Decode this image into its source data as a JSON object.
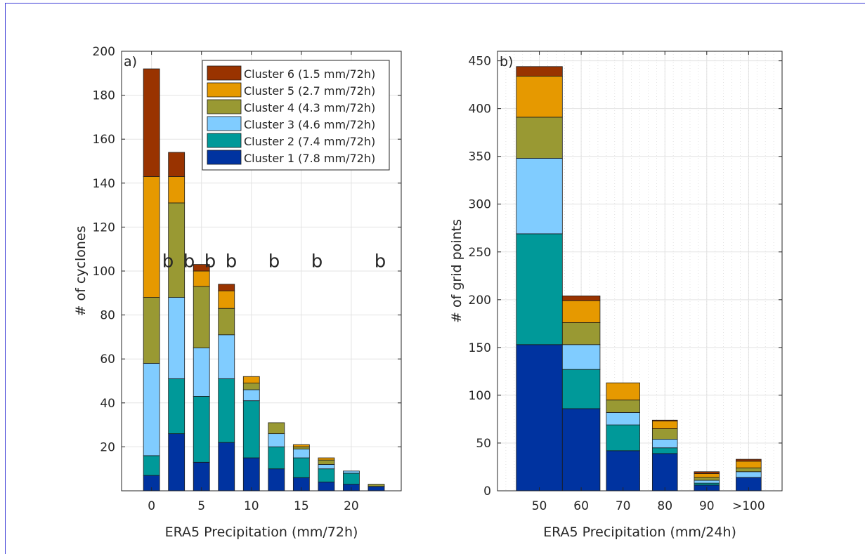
{
  "chart_data": [
    {
      "type": "bar",
      "stacked": true,
      "panel_label": "a)",
      "xlabel": "ERA5 Precipitation (mm/72h)",
      "ylabel": "# of cyclones",
      "xlim": [
        -3,
        25
      ],
      "ylim": [
        0,
        200
      ],
      "xticks": [
        0,
        5,
        10,
        15,
        20
      ],
      "yticks": [
        20,
        40,
        60,
        80,
        100,
        120,
        140,
        160,
        180,
        200
      ],
      "grid": true,
      "legend_position": "top-right",
      "x": [
        0,
        2.5,
        5,
        7.5,
        10,
        12.5,
        15,
        17.5,
        20,
        22.5
      ],
      "series": [
        {
          "name": "Cluster 1 (7.8 mm/72h)",
          "color": "#0033a0",
          "values": [
            7,
            26,
            13,
            22,
            15,
            10,
            6,
            4,
            3,
            2
          ]
        },
        {
          "name": "Cluster 2 (7.4 mm/72h)",
          "color": "#009999",
          "values": [
            9,
            25,
            30,
            29,
            26,
            10,
            9,
            6,
            5,
            0
          ]
        },
        {
          "name": "Cluster 3 (4.6 mm/72h)",
          "color": "#80ccff",
          "values": [
            42,
            37,
            22,
            20,
            5,
            6,
            4,
            2,
            1,
            0
          ]
        },
        {
          "name": "Cluster 4 (4.3 mm/72h)",
          "color": "#999933",
          "values": [
            30,
            43,
            28,
            12,
            3,
            5,
            1,
            2,
            0,
            1
          ]
        },
        {
          "name": "Cluster 5 (2.7 mm/72h)",
          "color": "#e69900",
          "values": [
            55,
            12,
            7,
            8,
            3,
            0,
            1,
            1,
            0,
            0
          ]
        },
        {
          "name": "Cluster 6 (1.5 mm/72h)",
          "color": "#993300",
          "values": [
            49,
            11,
            3,
            3,
            0,
            0,
            0,
            0,
            0,
            0
          ]
        }
      ],
      "annotations": [
        {
          "text": "b",
          "x": 2.5,
          "y": 105,
          "color": "#0033a0"
        },
        {
          "text": "b",
          "x": 5,
          "y": 105,
          "color": "#0033a0"
        },
        {
          "text": "b",
          "x": 7.5,
          "y": 105,
          "color": "#e69900"
        },
        {
          "text": "b",
          "x": 10,
          "y": 105,
          "color": "#009999"
        },
        {
          "text": "b",
          "x": 15,
          "y": 105,
          "color": "#0033a0"
        },
        {
          "text": "b",
          "x": 20,
          "y": 105,
          "color": "#009999"
        },
        {
          "text": "b",
          "x": 27.5,
          "y": 105,
          "color": "#009999"
        }
      ]
    },
    {
      "type": "bar",
      "stacked": true,
      "panel_label": "b)",
      "xlabel": "ERA5 Precipitation (mm/24h)",
      "ylabel": "# of grid points",
      "xlim": [
        40,
        108
      ],
      "ylim": [
        0,
        460
      ],
      "xticks": [
        50,
        60,
        70,
        80,
        90,
        100
      ],
      "xtick_labels": [
        "50",
        "60",
        "70",
        "80",
        "90",
        ">100"
      ],
      "yticks": [
        0,
        50,
        100,
        150,
        200,
        250,
        300,
        350,
        400,
        450
      ],
      "grid": true,
      "x": [
        50,
        60,
        70,
        80,
        90,
        100
      ],
      "widths": [
        11,
        9,
        8,
        6,
        6,
        6
      ],
      "series": [
        {
          "name": "Cluster 1 (7.8 mm/72h)",
          "color": "#0033a0",
          "values": [
            153,
            86,
            42,
            39,
            6,
            14
          ]
        },
        {
          "name": "Cluster 2 (7.4 mm/72h)",
          "color": "#009999",
          "values": [
            116,
            41,
            27,
            6,
            2,
            0
          ]
        },
        {
          "name": "Cluster 3 (4.6 mm/72h)",
          "color": "#80ccff",
          "values": [
            79,
            26,
            13,
            9,
            3,
            6
          ]
        },
        {
          "name": "Cluster 4 (4.3 mm/72h)",
          "color": "#999933",
          "values": [
            43,
            23,
            13,
            11,
            3,
            4
          ]
        },
        {
          "name": "Cluster 5 (2.7 mm/72h)",
          "color": "#e69900",
          "values": [
            43,
            23,
            18,
            8,
            4,
            7
          ]
        },
        {
          "name": "Cluster 6 (1.5 mm/72h)",
          "color": "#993300",
          "values": [
            10,
            5,
            0,
            1,
            2,
            2
          ]
        }
      ]
    }
  ]
}
